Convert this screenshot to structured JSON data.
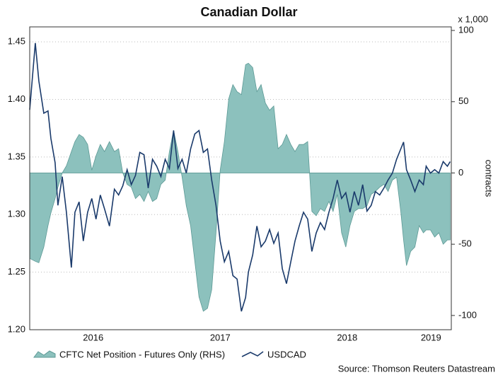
{
  "chart_data": {
    "type": "line",
    "title": "Canadian Dollar",
    "y2_unit_label": "x 1,000",
    "y2label": "contracts",
    "source": "Source: Thomson Reuters Datastream",
    "x": [
      2016.0,
      2016.044,
      2016.072,
      2016.111,
      2016.144,
      2016.167,
      2016.2,
      2016.222,
      2016.256,
      2016.289,
      2016.328,
      2016.356,
      2016.389,
      2016.422,
      2016.456,
      2016.489,
      2016.522,
      2016.556,
      2016.589,
      2016.628,
      2016.667,
      2016.7,
      2016.733,
      2016.767,
      2016.8,
      2016.833,
      2016.867,
      2016.9,
      2016.933,
      2016.967,
      2017.0,
      2017.033,
      2017.067,
      2017.1,
      2017.133,
      2017.167,
      2017.2,
      2017.233,
      2017.267,
      2017.3,
      2017.333,
      2017.367,
      2017.4,
      2017.433,
      2017.467,
      2017.5,
      2017.533,
      2017.567,
      2017.6,
      2017.633,
      2017.667,
      2017.7,
      2017.722,
      2017.756,
      2017.789,
      2017.822,
      2017.856,
      2017.889,
      2017.922,
      2017.956,
      2017.989,
      2018.022,
      2018.056,
      2018.089,
      2018.122,
      2018.156,
      2018.189,
      2018.222,
      2018.256,
      2018.289,
      2018.322,
      2018.356,
      2018.389,
      2018.422,
      2018.456,
      2018.489,
      2018.522,
      2018.556,
      2018.589,
      2018.622,
      2018.656,
      2018.689,
      2018.722,
      2018.756,
      2018.789,
      2018.822,
      2018.856,
      2018.889,
      2018.922,
      2018.944,
      2018.967,
      2019.0,
      2019.033,
      2019.067,
      2019.1,
      2019.122,
      2019.156,
      2019.189,
      2019.222,
      2019.256,
      2019.289,
      2019.311
    ],
    "series": [
      {
        "name": "CFTC Net Position - Futures Only (RHS)",
        "color": "#8cc1bd",
        "axis": "y2",
        "style": "area",
        "values": [
          -60,
          -62,
          -63,
          -52,
          -37,
          -28,
          -18,
          -10,
          0,
          5,
          15,
          22,
          27,
          25,
          20,
          2,
          12,
          20,
          15,
          22,
          15,
          17,
          0,
          -8,
          -10,
          -18,
          -15,
          -20,
          -13,
          -20,
          -18,
          -8,
          -5,
          15,
          30,
          15,
          -3,
          -23,
          -37,
          -62,
          -87,
          -97,
          -95,
          -82,
          -42,
          2,
          22,
          52,
          62,
          57,
          55,
          76,
          77,
          74,
          57,
          62,
          49,
          44,
          47,
          17,
          20,
          27,
          20,
          15,
          20,
          20,
          22,
          -27,
          -30,
          -25,
          -27,
          -20,
          -27,
          -15,
          -42,
          -52,
          -37,
          -27,
          -25,
          -25,
          -23,
          -15,
          -13,
          -10,
          -8,
          -13,
          -5,
          -3,
          -27,
          -47,
          -65,
          -55,
          -52,
          -37,
          -42,
          -40,
          -40,
          -45,
          -42,
          -50,
          -47,
          -47
        ]
      },
      {
        "name": "USDCAD",
        "color": "#1a3a6b",
        "style": "line",
        "values": [
          1.391,
          1.449,
          1.416,
          1.388,
          1.39,
          1.366,
          1.345,
          1.308,
          1.333,
          1.302,
          1.254,
          1.302,
          1.311,
          1.277,
          1.302,
          1.314,
          1.296,
          1.317,
          1.305,
          1.29,
          1.322,
          1.317,
          1.325,
          1.339,
          1.326,
          1.334,
          1.354,
          1.352,
          1.323,
          1.348,
          1.342,
          1.333,
          1.348,
          1.34,
          1.373,
          1.34,
          1.348,
          1.336,
          1.357,
          1.37,
          1.373,
          1.354,
          1.357,
          1.33,
          1.308,
          1.277,
          1.259,
          1.268,
          1.247,
          1.244,
          1.216,
          1.228,
          1.25,
          1.265,
          1.29,
          1.272,
          1.277,
          1.287,
          1.275,
          1.284,
          1.253,
          1.24,
          1.259,
          1.277,
          1.29,
          1.302,
          1.296,
          1.268,
          1.284,
          1.293,
          1.287,
          1.302,
          1.314,
          1.33,
          1.314,
          1.319,
          1.302,
          1.32,
          1.308,
          1.326,
          1.303,
          1.308,
          1.32,
          1.317,
          1.323,
          1.33,
          1.336,
          1.348,
          1.357,
          1.363,
          1.339,
          1.33,
          1.32,
          1.33,
          1.326,
          1.342,
          1.336,
          1.339,
          1.336,
          1.346,
          1.342,
          1.346
        ]
      }
    ],
    "xlim": [
      2016.0,
      2019.32
    ],
    "xticks": [
      {
        "value": 2016.5,
        "label": "2016"
      },
      {
        "value": 2017.5,
        "label": "2017"
      },
      {
        "value": 2018.5,
        "label": "2018"
      },
      {
        "value": 2019.16,
        "label": "2019"
      }
    ],
    "ylim": [
      1.2,
      1.463
    ],
    "yticks": [
      {
        "value": 1.2,
        "label": "1.20"
      },
      1.25,
      {
        "value": 1.3,
        "label": "1.30"
      },
      1.35,
      {
        "value": 1.4,
        "label": "1.40"
      },
      1.45
    ],
    "y2lim": [
      -110,
      102.5
    ],
    "y2ticks": [
      -100,
      -50,
      0,
      50,
      100
    ],
    "grid": true
  }
}
